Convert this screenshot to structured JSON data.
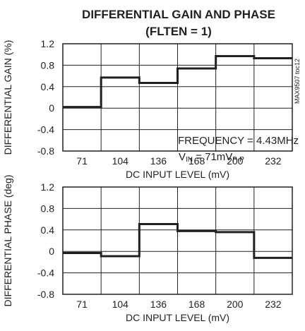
{
  "figure": {
    "title_line1": "DIFFERENTIAL GAIN AND PHASE",
    "title_line2": "(FLTEN = 1)",
    "part_code": "MAX9507 toc12",
    "annotation_freq": "FREQUENCY = 4.43MHz",
    "annotation_vin_prefix": "V",
    "annotation_vin_sub": "IN",
    "annotation_vin_mid": " = 71mV",
    "annotation_vin_sub2": "P-P"
  },
  "chart_data": [
    {
      "type": "line",
      "step": true,
      "ylabel": "DIFFERENTIAL GAIN (%)",
      "xlabel": "DC INPUT LEVEL (mV)",
      "x_ticks": [
        "71",
        "104",
        "136",
        "168",
        "200",
        "232"
      ],
      "y_ticks": [
        "1.2",
        "0.8",
        "0.4",
        "0",
        "-0.4",
        "-0.8"
      ],
      "ylim": [
        -0.8,
        1.2
      ],
      "grid": true,
      "series": [
        {
          "values": [
            0.02,
            0.57,
            0.47,
            0.74,
            0.97,
            0.93
          ]
        }
      ]
    },
    {
      "type": "line",
      "step": true,
      "ylabel": "DIFFERENTIAL PHASE (deg)",
      "xlabel": "DC INPUT LEVEL (mV)",
      "x_ticks": [
        "71",
        "104",
        "136",
        "168",
        "200",
        "232"
      ],
      "y_ticks": [
        "1.2",
        "0.8",
        "0.4",
        "0",
        "-0.4",
        "-0.8"
      ],
      "ylim": [
        -0.8,
        1.2
      ],
      "grid": true,
      "series": [
        {
          "values": [
            -0.03,
            -0.09,
            0.51,
            0.38,
            0.36,
            -0.12
          ]
        }
      ]
    }
  ]
}
